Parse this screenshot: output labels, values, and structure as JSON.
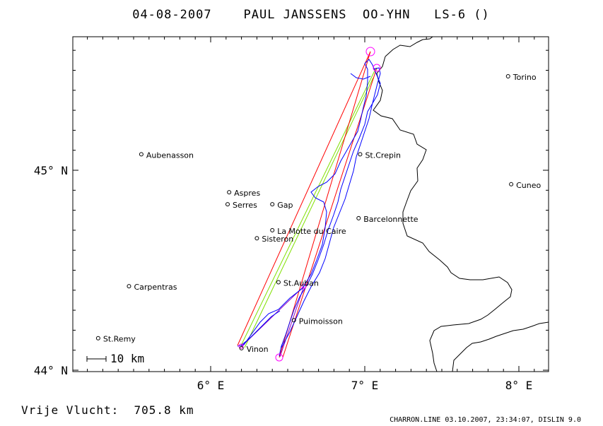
{
  "title": "04-08-2007    PAUL JANSSENS  OO-YHN   LS-6 ()",
  "axes": {
    "x_ticks": [
      {
        "label": "6° E",
        "lon": 6.0
      },
      {
        "label": "7° E",
        "lon": 7.0
      },
      {
        "label": "8° E",
        "lon": 8.0
      }
    ],
    "y_ticks": [
      {
        "label": "45° N",
        "lat": 45.0
      },
      {
        "label": "44° N",
        "lat": 44.0
      }
    ]
  },
  "scale_bar": {
    "label": "10 km"
  },
  "towns": [
    {
      "name": "Torino",
      "lon": 7.93,
      "lat": 45.47
    },
    {
      "name": "Aubenasson",
      "lon": 5.55,
      "lat": 45.08
    },
    {
      "name": "St.Crepin",
      "lon": 6.97,
      "lat": 45.08
    },
    {
      "name": "Cuneo",
      "lon": 7.95,
      "lat": 44.93
    },
    {
      "name": "Aspres",
      "lon": 6.12,
      "lat": 44.89
    },
    {
      "name": "Serres",
      "lon": 6.11,
      "lat": 44.83
    },
    {
      "name": "Gap",
      "lon": 6.4,
      "lat": 44.83
    },
    {
      "name": "Barcelonnette",
      "lon": 6.96,
      "lat": 44.76
    },
    {
      "name": "La Motte du Caire",
      "lon": 6.4,
      "lat": 44.7
    },
    {
      "name": "Sisteron",
      "lon": 6.3,
      "lat": 44.66
    },
    {
      "name": "St.Auban",
      "lon": 6.44,
      "lat": 44.44
    },
    {
      "name": "Carpentras",
      "lon": 5.47,
      "lat": 44.42
    },
    {
      "name": "Puimoisson",
      "lon": 6.54,
      "lat": 44.25
    },
    {
      "name": "St.Remy",
      "lon": 5.27,
      "lat": 44.16
    },
    {
      "name": "Vinon",
      "lon": 6.2,
      "lat": 44.11
    }
  ],
  "colors": {
    "frame": "#000000",
    "border": "#000000",
    "track": "#0000ff",
    "task_red": "#ff0000",
    "task_green": "#80e000",
    "turnpoint": "#ff00ff",
    "task_purple": "#9000c0"
  },
  "footer": {
    "distance": "Vrije Vlucht:  705.8 km",
    "credit": "CHARRON.LINE 03.10.2007, 23:34:07, DISLIN 9.0"
  }
}
